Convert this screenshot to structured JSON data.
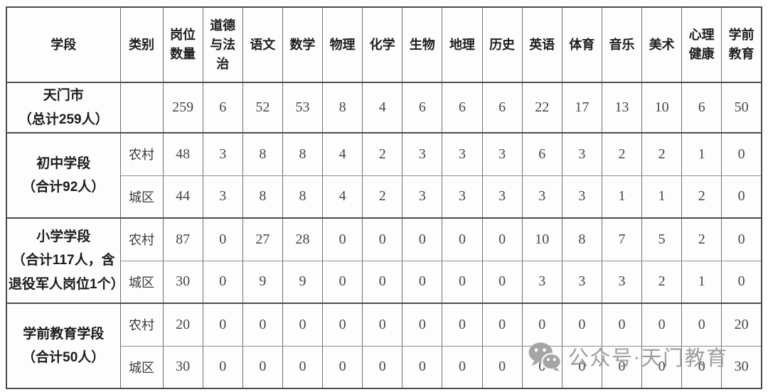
{
  "table": {
    "headers": [
      {
        "id": "stage",
        "label": "学段"
      },
      {
        "id": "category",
        "label": "类别"
      },
      {
        "id": "positions",
        "label": "岗位\n数量"
      },
      {
        "id": "morality_law",
        "label": "道德\n与法\n治"
      },
      {
        "id": "chinese",
        "label": "语文"
      },
      {
        "id": "math",
        "label": "数学"
      },
      {
        "id": "physics",
        "label": "物理"
      },
      {
        "id": "chemistry",
        "label": "化学"
      },
      {
        "id": "biology",
        "label": "生物"
      },
      {
        "id": "geography",
        "label": "地理"
      },
      {
        "id": "history",
        "label": "历史"
      },
      {
        "id": "english",
        "label": "英语"
      },
      {
        "id": "pe",
        "label": "体育"
      },
      {
        "id": "music",
        "label": "音乐"
      },
      {
        "id": "art",
        "label": "美术"
      },
      {
        "id": "mental_health",
        "label": "心理\n健康"
      },
      {
        "id": "preschool",
        "label": "学前\n教育"
      }
    ],
    "groups": [
      {
        "stage": "天门市\n（总计259人）",
        "rows": [
          {
            "category": "",
            "values": [
              259,
              6,
              52,
              53,
              8,
              4,
              6,
              6,
              6,
              22,
              17,
              13,
              10,
              6,
              50
            ]
          }
        ]
      },
      {
        "stage": "初中学段\n（合计92人）",
        "rows": [
          {
            "category": "农村",
            "values": [
              48,
              3,
              8,
              8,
              4,
              2,
              3,
              3,
              3,
              6,
              3,
              2,
              2,
              1,
              0
            ]
          },
          {
            "category": "城区",
            "values": [
              44,
              3,
              8,
              8,
              4,
              2,
              3,
              3,
              3,
              3,
              3,
              1,
              1,
              2,
              0
            ]
          }
        ]
      },
      {
        "stage": "小学学段\n（合计117人，含\n退役军人岗位1个）",
        "rows": [
          {
            "category": "农村",
            "values": [
              87,
              0,
              27,
              28,
              0,
              0,
              0,
              0,
              0,
              10,
              8,
              7,
              5,
              2,
              0
            ]
          },
          {
            "category": "城区",
            "values": [
              30,
              0,
              9,
              9,
              0,
              0,
              0,
              0,
              0,
              3,
              3,
              3,
              2,
              1,
              0
            ]
          }
        ]
      },
      {
        "stage": "学前教育学段\n（合计50人）",
        "rows": [
          {
            "category": "农村",
            "values": [
              20,
              0,
              0,
              0,
              0,
              0,
              0,
              0,
              0,
              0,
              0,
              0,
              0,
              0,
              20
            ]
          },
          {
            "category": "城区",
            "values": [
              30,
              0,
              0,
              0,
              0,
              0,
              0,
              0,
              0,
              0,
              0,
              0,
              0,
              0,
              30
            ]
          }
        ]
      }
    ]
  },
  "watermark": {
    "icon": "wechat-icon",
    "text": "公众号·天门教育",
    "color": "#a5a5a5"
  },
  "colors": {
    "table_border": "#4c4c4c",
    "inner_border": "#6f6f6f",
    "header_text": "#1e1e1e",
    "value_text": "#474747",
    "background": "#ffffff"
  }
}
